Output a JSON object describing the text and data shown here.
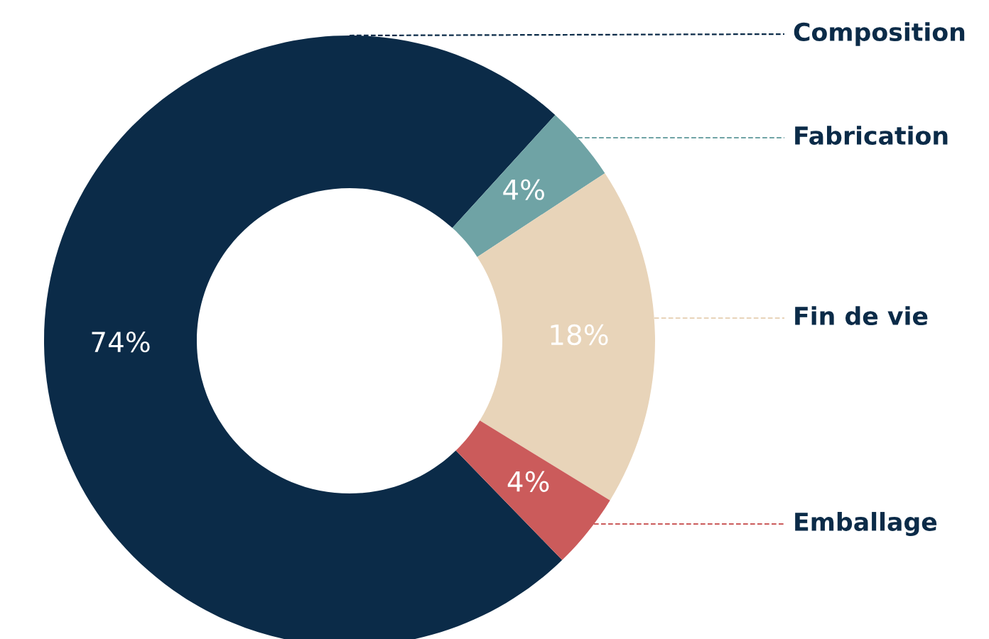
{
  "chart_data": {
    "type": "donut",
    "categories": [
      "Composition",
      "Fabrication",
      "Fin de vie",
      "Emballage"
    ],
    "values": [
      74,
      4,
      18,
      4
    ],
    "value_labels": [
      "74%",
      "4%",
      "18%",
      "4%"
    ],
    "colors": [
      "#0b2b48",
      "#6fa3a5",
      "#e8d4b9",
      "#cb5b5b"
    ],
    "legend": false
  }
}
